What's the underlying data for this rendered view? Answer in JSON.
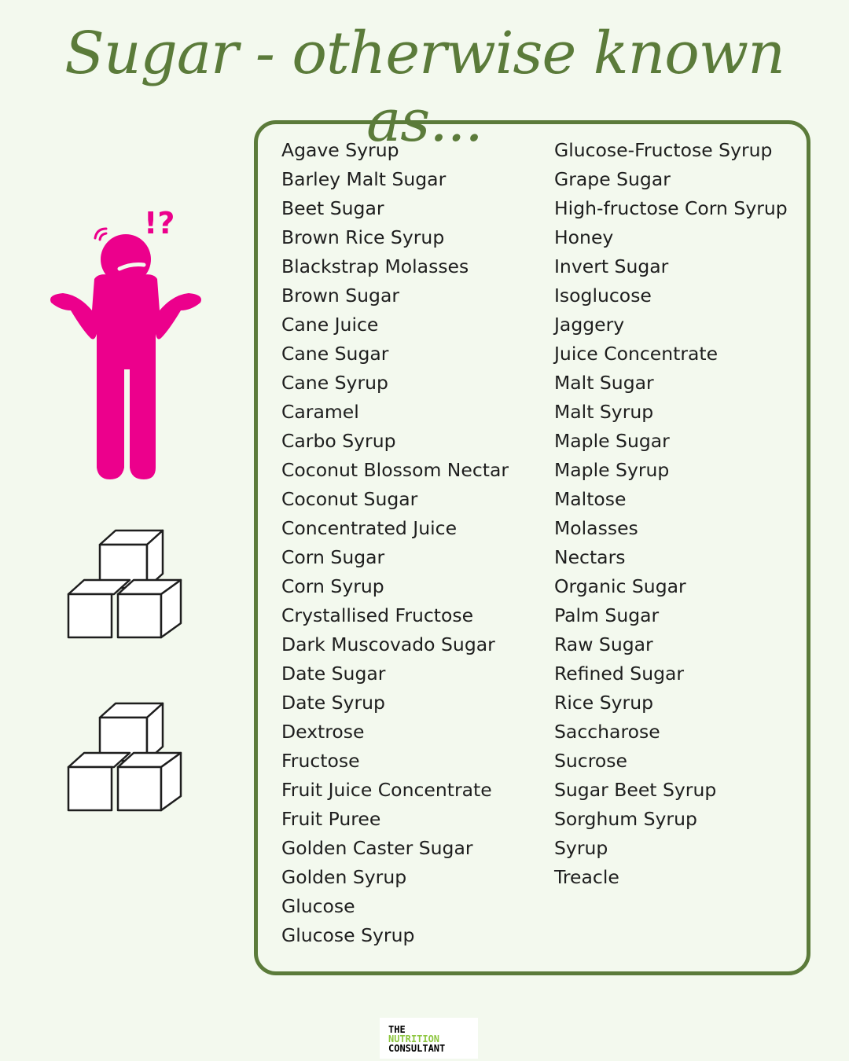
{
  "title": "Sugar - otherwise known as...",
  "colors": {
    "background": "#f3f9ee",
    "accent_green": "#5b7b3a",
    "figure_pink": "#ec008c"
  },
  "figure": {
    "exclamation": "!?"
  },
  "icons": [
    "confused-person-icon",
    "sugar-cubes-icon",
    "sugar-cubes-icon"
  ],
  "column1": [
    "Agave Syrup",
    "Barley Malt Sugar",
    "Beet Sugar",
    "Brown Rice Syrup",
    "Blackstrap Molasses",
    "Brown Sugar",
    "Cane Juice",
    "Cane Sugar",
    "Cane Syrup",
    "Caramel",
    "Carbo Syrup",
    "Coconut Blossom Nectar",
    "Coconut Sugar",
    "Concentrated Juice",
    "Corn Sugar",
    "Corn Syrup",
    "Crystallised Fructose",
    "Dark Muscovado Sugar",
    "Date Sugar",
    "Date Syrup",
    "Dextrose",
    "Fructose",
    "Fruit Juice Concentrate",
    "Fruit Puree",
    "Golden Caster Sugar",
    "Golden Syrup",
    "Glucose",
    "Glucose Syrup"
  ],
  "column2": [
    "Glucose-Fructose Syrup",
    "Grape Sugar",
    "High-fructose Corn Syrup",
    "Honey",
    "Invert Sugar",
    "Isoglucose",
    "Jaggery",
    "Juice Concentrate",
    "Malt Sugar",
    "Malt Syrup",
    "Maple Sugar",
    "Maple Syrup",
    "Maltose",
    "Molasses",
    "Nectars",
    "Organic Sugar",
    "Palm Sugar",
    "Raw Sugar",
    "Refined Sugar",
    "Rice Syrup",
    "Saccharose",
    "Sucrose",
    "Sugar Beet Syrup",
    "Sorghum Syrup",
    "Syrup",
    "Treacle"
  ],
  "logo": {
    "line1": "THE",
    "line2": "NUTRITION",
    "line3": "CONSULTANT"
  }
}
